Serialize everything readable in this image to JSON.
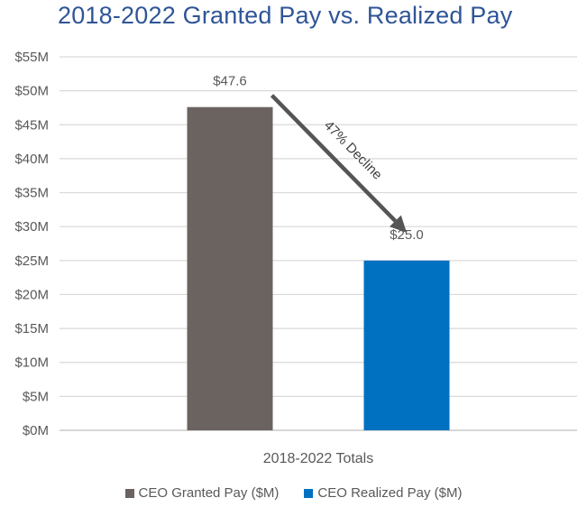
{
  "chart_data": {
    "type": "bar",
    "title": "2018-2022 Granted Pay vs. Realized Pay",
    "categories": [
      "2018-2022 Totals"
    ],
    "series": [
      {
        "name": "CEO Granted Pay ($M)",
        "values": [
          47.6
        ],
        "data_label": "$47.6",
        "color": "#6b6360"
      },
      {
        "name": "CEO Realized Pay ($M)",
        "values": [
          25.0
        ],
        "data_label": "$25.0",
        "color": "#0070c0"
      }
    ],
    "ylim": [
      0,
      55
    ],
    "yticks": [
      0,
      5,
      10,
      15,
      20,
      25,
      30,
      35,
      40,
      45,
      50,
      55
    ],
    "ytick_labels": [
      "$0M",
      "$5M",
      "$10M",
      "$15M",
      "$20M",
      "$25M",
      "$30M",
      "$35M",
      "$40M",
      "$45M",
      "$50M",
      "$55M"
    ],
    "xlabel": "",
    "ylabel": "",
    "grid": true,
    "legend_position": "bottom",
    "annotation": {
      "text": "47% Decline",
      "from_series": 0,
      "to_series": 1,
      "color": "#555555"
    }
  }
}
